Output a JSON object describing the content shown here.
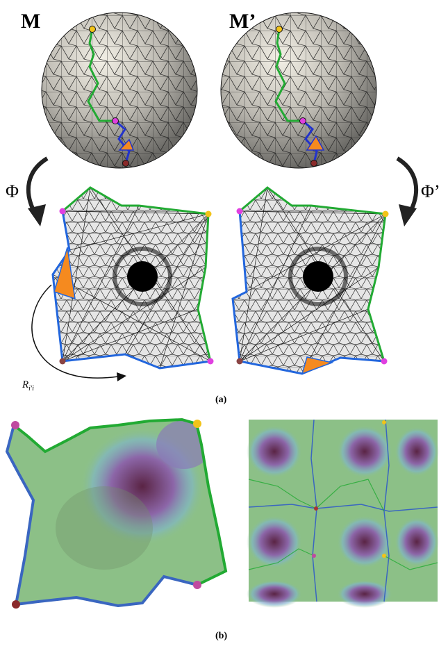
{
  "figure": {
    "top": {
      "mesh_left_label": "M",
      "mesh_right_label": "M’",
      "map_left_label": "Φ",
      "map_right_label": "Φ’",
      "rotation_label": "R",
      "rotation_subscript": "i′i",
      "caption": "(a)"
    },
    "bottom": {
      "caption": "(b)"
    },
    "colors": {
      "boundary_green": "#22aa33",
      "boundary_blue": "#2266dd",
      "cone_yellow": "#f2c318",
      "cone_magenta": "#e040e0",
      "cone_darkred": "#8a2a2a",
      "highlight_orange": "#f58a1f",
      "mesh_fill": "#e6e6e6"
    }
  }
}
